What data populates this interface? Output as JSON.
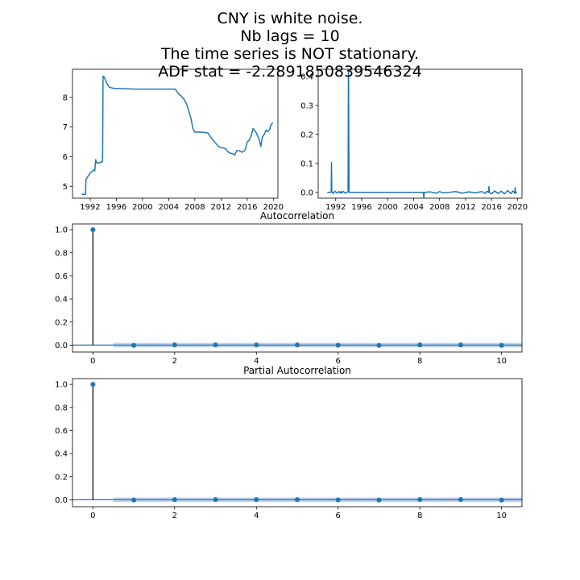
{
  "figure": {
    "suptitle_lines": [
      "CNY is white noise.",
      "Nb lags = 10",
      "The time series is NOT stationary.",
      "ADF stat = -2.2891850839546324"
    ]
  },
  "colors": {
    "series": "#1f77b4",
    "stem": "#000000",
    "confidence_band": "#aec7e8"
  },
  "chart_data": [
    {
      "type": "line",
      "title": "",
      "xlabel": "",
      "ylabel": "",
      "xlim": [
        1989.3,
        2020.7
      ],
      "ylim": [
        4.6,
        8.95
      ],
      "xticks": [
        1992,
        1996,
        2000,
        2004,
        2008,
        2012,
        2016,
        2020
      ],
      "xtick_labels": [
        "1992",
        "1996",
        "2000",
        "2004",
        "2008",
        "2012",
        "2016",
        "2020"
      ],
      "yticks": [
        5,
        6,
        7,
        8
      ],
      "ytick_labels": [
        "5",
        "6",
        "7",
        "8"
      ],
      "series": [
        {
          "x": [
            1990.7,
            1991.0,
            1991.3,
            1991.35,
            1991.7,
            1992.0,
            1992.3,
            1992.5,
            1992.7,
            1992.85,
            1993.0,
            1993.3,
            1993.6,
            1993.9,
            1993.97,
            1994.1,
            1994.3,
            1994.6,
            1994.9,
            1995.3,
            1995.8,
            1996.5,
            1997.5,
            1999,
            2001,
            2003,
            2005.0,
            2005.6,
            2005.9,
            2006.3,
            2006.7,
            2007.0,
            2007.4,
            2007.7,
            2008.0,
            2008.4,
            2008.6,
            2009.0,
            2010.0,
            2010.4,
            2010.8,
            2011.2,
            2011.6,
            2012.0,
            2012.3,
            2012.7,
            2013.0,
            2013.4,
            2013.8,
            2014.1,
            2014.4,
            2014.8,
            2015.2,
            2015.6,
            2015.8,
            2016.0,
            2016.3,
            2016.6,
            2016.9,
            2017.1,
            2017.4,
            2017.8,
            2018.1,
            2018.3,
            2018.6,
            2018.9,
            2019.1,
            2019.4,
            2019.6,
            2019.9
          ],
          "y": [
            4.73,
            4.73,
            4.73,
            5.22,
            5.35,
            5.45,
            5.5,
            5.55,
            5.52,
            5.9,
            5.78,
            5.8,
            5.8,
            5.85,
            8.72,
            8.7,
            8.6,
            8.45,
            8.35,
            8.32,
            8.3,
            8.3,
            8.29,
            8.28,
            8.28,
            8.28,
            8.28,
            8.1,
            8.05,
            7.95,
            7.8,
            7.6,
            7.3,
            6.95,
            6.83,
            6.83,
            6.83,
            6.83,
            6.8,
            6.67,
            6.55,
            6.45,
            6.35,
            6.3,
            6.3,
            6.27,
            6.18,
            6.12,
            6.1,
            6.05,
            6.2,
            6.2,
            6.15,
            6.2,
            6.3,
            6.5,
            6.55,
            6.7,
            6.95,
            6.9,
            6.8,
            6.6,
            6.35,
            6.65,
            6.75,
            6.9,
            6.85,
            6.9,
            7.05,
            7.15
          ]
        }
      ]
    },
    {
      "type": "line",
      "title": "",
      "xlabel": "",
      "ylabel": "",
      "xlim": [
        1989.3,
        2020.7
      ],
      "ylim": [
        -0.02,
        0.425
      ],
      "xticks": [
        1992,
        1996,
        2000,
        2004,
        2008,
        2012,
        2016,
        2020
      ],
      "xtick_labels": [
        "1992",
        "1996",
        "2000",
        "2004",
        "2008",
        "2012",
        "2016",
        "2020"
      ],
      "yticks": [
        0.0,
        0.1,
        0.2,
        0.3,
        0.4
      ],
      "ytick_labels": [
        "0.0",
        "0.1",
        "0.2",
        "0.3",
        "0.4"
      ],
      "series": [
        {
          "x": [
            1990.7,
            1991.3,
            1991.35,
            1991.4,
            1991.6,
            1991.9,
            1992.2,
            1992.5,
            1992.7,
            1992.85,
            1992.9,
            1993.2,
            1993.5,
            1993.9,
            1993.97,
            1994.05,
            1994.4,
            1995,
            1997,
            2000,
            2003,
            2005.5,
            2005.58,
            2005.65,
            2006.5,
            2007.5,
            2008.0,
            2008.5,
            2009.5,
            2010.5,
            2011.5,
            2012.5,
            2013.5,
            2014.5,
            2015.0,
            2015.3,
            2015.55,
            2015.6,
            2015.7,
            2016.0,
            2016.5,
            2017.0,
            2017.5,
            2018.0,
            2018.5,
            2019.0,
            2019.3,
            2019.6,
            2019.65,
            2019.7,
            2019.9
          ],
          "y": [
            0.0,
            0.0,
            0.103,
            0.003,
            -0.004,
            0.004,
            -0.003,
            0.003,
            -0.002,
            0.004,
            -0.002,
            0.003,
            -0.003,
            0.002,
            0.49,
            0.0,
            0.0,
            0.0,
            0.0,
            0.0,
            0.0,
            0.0,
            -0.018,
            0.0,
            0.002,
            -0.003,
            0.003,
            -0.002,
            0.0,
            0.003,
            -0.003,
            0.002,
            -0.002,
            0.003,
            -0.004,
            0.004,
            0.0,
            0.02,
            0.0,
            -0.005,
            0.005,
            -0.004,
            0.004,
            -0.005,
            0.006,
            -0.004,
            0.005,
            -0.003,
            0.016,
            -0.003,
            0.002
          ]
        }
      ]
    },
    {
      "type": "stem",
      "title": "Autocorrelation",
      "xlabel": "",
      "ylabel": "",
      "xlim": [
        -0.5,
        10.5
      ],
      "ylim": [
        -0.06,
        1.05
      ],
      "xticks": [
        0,
        2,
        4,
        6,
        8,
        10
      ],
      "xtick_labels": [
        "0",
        "2",
        "4",
        "6",
        "8",
        "10"
      ],
      "yticks": [
        0.0,
        0.2,
        0.4,
        0.6,
        0.8,
        1.0
      ],
      "ytick_labels": [
        "0.0",
        "0.2",
        "0.4",
        "0.6",
        "0.8",
        "1.0"
      ],
      "lags": [
        0,
        1,
        2,
        3,
        4,
        5,
        6,
        7,
        8,
        9,
        10
      ],
      "values": [
        1.0,
        -0.002,
        0.002,
        0.002,
        0.002,
        0.002,
        -0.001,
        -0.002,
        0.002,
        0.002,
        -0.002
      ],
      "confidence_interval": [
        -0.02,
        0.02
      ]
    },
    {
      "type": "stem",
      "title": "Partial Autocorrelation",
      "xlabel": "",
      "ylabel": "",
      "xlim": [
        -0.5,
        10.5
      ],
      "ylim": [
        -0.06,
        1.05
      ],
      "xticks": [
        0,
        2,
        4,
        6,
        8,
        10
      ],
      "xtick_labels": [
        "0",
        "2",
        "4",
        "6",
        "8",
        "10"
      ],
      "yticks": [
        0.0,
        0.2,
        0.4,
        0.6,
        0.8,
        1.0
      ],
      "ytick_labels": [
        "0.0",
        "0.2",
        "0.4",
        "0.6",
        "0.8",
        "1.0"
      ],
      "lags": [
        0,
        1,
        2,
        3,
        4,
        5,
        6,
        7,
        8,
        9,
        10
      ],
      "values": [
        1.0,
        -0.002,
        0.002,
        0.002,
        0.002,
        0.002,
        -0.001,
        -0.002,
        0.002,
        0.002,
        -0.002
      ],
      "confidence_interval": [
        -0.02,
        0.02
      ]
    }
  ]
}
